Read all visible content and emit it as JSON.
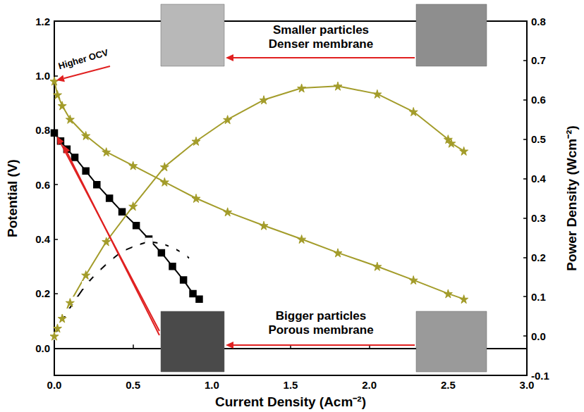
{
  "chart_data": {
    "type": "line",
    "x_label": "Current Density (Acm⁻²)",
    "y_label": "Potential (V)",
    "y2_label": "Power Density (Wcm⁻²)",
    "xlim": [
      0,
      3
    ],
    "xticks": [
      {
        "value": 0,
        "label": "0.0"
      },
      0.5,
      {
        "value": 1,
        "label": "1.0"
      },
      1.5,
      {
        "value": 2,
        "label": "2.0"
      },
      2.5,
      {
        "value": 3,
        "label": "3.0"
      }
    ],
    "ylim": [
      -0.1,
      1.2
    ],
    "yticks": [
      {
        "value": 0,
        "label": "0.0"
      },
      0.2,
      0.4,
      0.6,
      0.8,
      {
        "value": 1,
        "label": "1.0"
      },
      1.2
    ],
    "y2lim": [
      -0.1,
      0.8
    ],
    "y2ticks": [
      -0.1,
      {
        "value": 0,
        "label": "0.0"
      },
      0.1,
      0.2,
      0.3,
      0.4,
      0.5,
      0.6,
      0.7,
      0.8
    ],
    "grid": false,
    "series": [
      {
        "color": "#000000",
        "marker": "square",
        "axis": "y",
        "x": [
          0,
          0.04,
          0.08,
          0.13,
          0.2,
          0.27,
          0.35,
          0.43,
          0.52,
          0.6,
          0.68,
          0.75,
          0.82,
          0.88,
          0.92
        ],
        "values": [
          0.79,
          0.76,
          0.73,
          0.7,
          0.65,
          0.6,
          0.55,
          0.5,
          0.45,
          0.4,
          0.35,
          0.3,
          0.25,
          0.2,
          0.18
        ]
      },
      {
        "color": "#000000",
        "marker": "open_square",
        "axis": "y2",
        "x": [
          0,
          0.04,
          0.08,
          0.13,
          0.2,
          0.27,
          0.35,
          0.43,
          0.52,
          0.6,
          0.68,
          0.75,
          0.82,
          0.88,
          0.92
        ],
        "values": [
          0.0,
          0.03,
          0.06,
          0.09,
          0.13,
          0.16,
          0.19,
          0.215,
          0.23,
          0.24,
          0.235,
          0.225,
          0.21,
          0.19,
          0.18
        ]
      },
      {
        "color": "#a39c2a",
        "marker": "star",
        "axis": "y",
        "x": [
          0,
          0.02,
          0.05,
          0.1,
          0.2,
          0.33,
          0.5,
          0.7,
          0.9,
          1.1,
          1.33,
          1.57,
          1.8,
          2.05,
          2.28,
          2.5,
          2.6
        ],
        "values": [
          0.98,
          0.93,
          0.89,
          0.84,
          0.78,
          0.72,
          0.67,
          0.61,
          0.55,
          0.5,
          0.45,
          0.4,
          0.35,
          0.3,
          0.25,
          0.2,
          0.18
        ]
      },
      {
        "color": "#a39c2a",
        "marker": "star",
        "axis": "y2",
        "x": [
          0,
          0.02,
          0.05,
          0.1,
          0.2,
          0.33,
          0.5,
          0.7,
          0.9,
          1.1,
          1.33,
          1.57,
          1.8,
          2.05,
          2.28,
          2.5,
          2.52,
          2.6
        ],
        "values": [
          0.0,
          0.02,
          0.045,
          0.085,
          0.155,
          0.24,
          0.33,
          0.43,
          0.495,
          0.55,
          0.6,
          0.63,
          0.635,
          0.615,
          0.57,
          0.5,
          0.49,
          0.47
        ]
      }
    ],
    "annotations": [
      "Higher OCV",
      "Smaller particles\nDenser membrane",
      "Bigger particles\nPorous membrane"
    ]
  }
}
